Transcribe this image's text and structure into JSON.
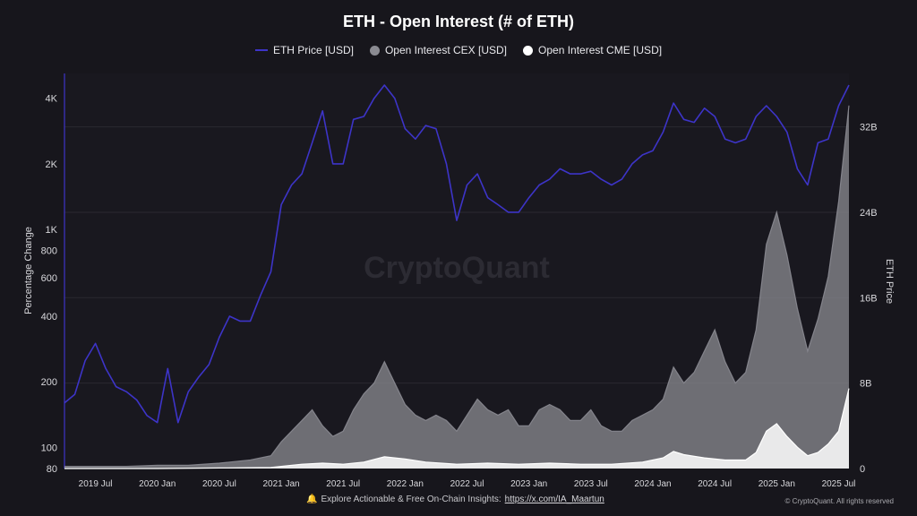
{
  "title": "ETH - Open Interest (# of ETH)",
  "legend": [
    {
      "label": "ETH Price [USD]",
      "color": "#3d34c8",
      "marker": "line"
    },
    {
      "label": "Open Interest CEX [USD]",
      "color": "#8b8b92",
      "marker": "dot"
    },
    {
      "label": "Open Interest CME [USD]",
      "color": "#ffffff",
      "marker": "dot"
    }
  ],
  "watermark": "CryptoQuant",
  "footer": {
    "text": "Explore Actionable & Free On-Chain Insights:",
    "link": "https://x.com/IA_Maartun",
    "icon": "bell-icon"
  },
  "copyright": "© CryptoQuant. All rights reserved",
  "chart_data": {
    "type": "line",
    "x_ticks": [
      "2019 Jul",
      "2020 Jan",
      "2020 Jul",
      "2021 Jan",
      "2021 Jul",
      "2022 Jan",
      "2022 Jul",
      "2023 Jan",
      "2023 Jul",
      "2024 Jan",
      "2024 Jul",
      "2025 Jan",
      "2025 Jul"
    ],
    "x_range": [
      "2019-04",
      "2025-08"
    ],
    "y_left": {
      "label": "Percentage Change",
      "scale": "log",
      "ticks": [
        "80",
        "100",
        "200",
        "400",
        "600",
        "800",
        "1K",
        "2K",
        "4K"
      ],
      "tick_values": [
        80,
        100,
        200,
        400,
        600,
        800,
        1000,
        2000,
        4000
      ],
      "range": [
        80,
        5200
      ]
    },
    "y_right": {
      "label": "ETH Price",
      "scale": "linear",
      "ticks": [
        "0",
        "8B",
        "16B",
        "24B",
        "32B"
      ],
      "tick_values": [
        0,
        8,
        16,
        24,
        32
      ],
      "range": [
        0,
        37
      ],
      "unit": "B"
    },
    "series": [
      {
        "name": "ETH Price [USD]",
        "axis": "left",
        "color": "#3d34c8",
        "type": "line",
        "x": [
          "2019-04",
          "2019-05",
          "2019-06",
          "2019-07",
          "2019-08",
          "2019-09",
          "2019-10",
          "2019-11",
          "2019-12",
          "2020-01",
          "2020-02",
          "2020-03",
          "2020-04",
          "2020-05",
          "2020-06",
          "2020-07",
          "2020-08",
          "2020-09",
          "2020-10",
          "2020-11",
          "2020-12",
          "2021-01",
          "2021-02",
          "2021-03",
          "2021-04",
          "2021-05",
          "2021-06",
          "2021-07",
          "2021-08",
          "2021-09",
          "2021-10",
          "2021-11",
          "2021-12",
          "2022-01",
          "2022-02",
          "2022-03",
          "2022-04",
          "2022-05",
          "2022-06",
          "2022-07",
          "2022-08",
          "2022-09",
          "2022-10",
          "2022-11",
          "2022-12",
          "2023-01",
          "2023-02",
          "2023-03",
          "2023-04",
          "2023-05",
          "2023-06",
          "2023-07",
          "2023-08",
          "2023-09",
          "2023-10",
          "2023-11",
          "2023-12",
          "2024-01",
          "2024-02",
          "2024-03",
          "2024-04",
          "2024-05",
          "2024-06",
          "2024-07",
          "2024-08",
          "2024-09",
          "2024-10",
          "2024-11",
          "2024-12",
          "2025-01",
          "2025-02",
          "2025-03",
          "2025-04",
          "2025-05",
          "2025-06",
          "2025-07",
          "2025-08"
        ],
        "values": [
          160,
          175,
          250,
          300,
          230,
          190,
          180,
          165,
          140,
          130,
          230,
          130,
          180,
          210,
          240,
          320,
          400,
          380,
          380,
          500,
          640,
          1300,
          1600,
          1800,
          2500,
          3500,
          2000,
          2000,
          3200,
          3300,
          4000,
          4600,
          4000,
          2900,
          2600,
          3000,
          2900,
          2000,
          1100,
          1600,
          1800,
          1400,
          1300,
          1200,
          1200,
          1400,
          1600,
          1700,
          1900,
          1800,
          1800,
          1850,
          1700,
          1600,
          1700,
          2000,
          2200,
          2300,
          2800,
          3800,
          3200,
          3100,
          3600,
          3300,
          2600,
          2500,
          2600,
          3300,
          3700,
          3300,
          2800,
          1900,
          1600,
          2500,
          2600,
          3700,
          4600
        ]
      },
      {
        "name": "Open Interest CEX [USD]",
        "axis": "right",
        "color": "#8b8b92",
        "type": "area",
        "x": [
          "2019-04",
          "2019-07",
          "2019-10",
          "2020-01",
          "2020-04",
          "2020-07",
          "2020-10",
          "2020-12",
          "2021-01",
          "2021-02",
          "2021-03",
          "2021-04",
          "2021-05",
          "2021-06",
          "2021-07",
          "2021-08",
          "2021-09",
          "2021-10",
          "2021-11",
          "2021-12",
          "2022-01",
          "2022-02",
          "2022-03",
          "2022-04",
          "2022-05",
          "2022-06",
          "2022-07",
          "2022-08",
          "2022-09",
          "2022-10",
          "2022-11",
          "2022-12",
          "2023-01",
          "2023-02",
          "2023-03",
          "2023-04",
          "2023-05",
          "2023-06",
          "2023-07",
          "2023-08",
          "2023-09",
          "2023-10",
          "2023-11",
          "2023-12",
          "2024-01",
          "2024-02",
          "2024-03",
          "2024-04",
          "2024-05",
          "2024-06",
          "2024-07",
          "2024-08",
          "2024-09",
          "2024-10",
          "2024-11",
          "2024-12",
          "2025-01",
          "2025-02",
          "2025-03",
          "2025-04",
          "2025-05",
          "2025-06",
          "2025-07",
          "2025-08"
        ],
        "values": [
          0.2,
          0.2,
          0.2,
          0.3,
          0.3,
          0.5,
          0.8,
          1.2,
          2.5,
          3.5,
          4.5,
          5.5,
          4.0,
          3.0,
          3.5,
          5.5,
          7.0,
          8.0,
          10.0,
          8.0,
          6.0,
          5.0,
          4.5,
          5.0,
          4.5,
          3.5,
          5.0,
          6.5,
          5.5,
          5.0,
          5.5,
          4.0,
          4.0,
          5.5,
          6.0,
          5.5,
          4.5,
          4.5,
          5.5,
          4.0,
          3.5,
          3.5,
          4.5,
          5.0,
          5.5,
          6.5,
          9.5,
          8.0,
          9.0,
          11.0,
          13.0,
          10.0,
          8.0,
          9.0,
          13.0,
          21.0,
          24.0,
          20.0,
          15.0,
          11.0,
          14.0,
          18.0,
          25.0,
          34.0
        ]
      },
      {
        "name": "Open Interest CME [USD]",
        "axis": "right",
        "color": "#ffffff",
        "type": "area",
        "x": [
          "2019-04",
          "2020-01",
          "2020-07",
          "2020-12",
          "2021-01",
          "2021-03",
          "2021-05",
          "2021-07",
          "2021-09",
          "2021-11",
          "2022-01",
          "2022-03",
          "2022-06",
          "2022-09",
          "2022-12",
          "2023-03",
          "2023-06",
          "2023-09",
          "2023-12",
          "2024-02",
          "2024-03",
          "2024-04",
          "2024-06",
          "2024-08",
          "2024-10",
          "2024-11",
          "2024-12",
          "2025-01",
          "2025-02",
          "2025-03",
          "2025-04",
          "2025-05",
          "2025-06",
          "2025-07",
          "2025-08"
        ],
        "values": [
          0.0,
          0.0,
          0.05,
          0.1,
          0.2,
          0.4,
          0.5,
          0.4,
          0.6,
          1.1,
          0.9,
          0.6,
          0.4,
          0.5,
          0.4,
          0.5,
          0.4,
          0.4,
          0.6,
          1.0,
          1.6,
          1.3,
          1.0,
          0.8,
          0.8,
          1.5,
          3.5,
          4.2,
          3.0,
          2.0,
          1.2,
          1.5,
          2.3,
          3.5,
          7.5
        ]
      }
    ],
    "grid": true
  }
}
